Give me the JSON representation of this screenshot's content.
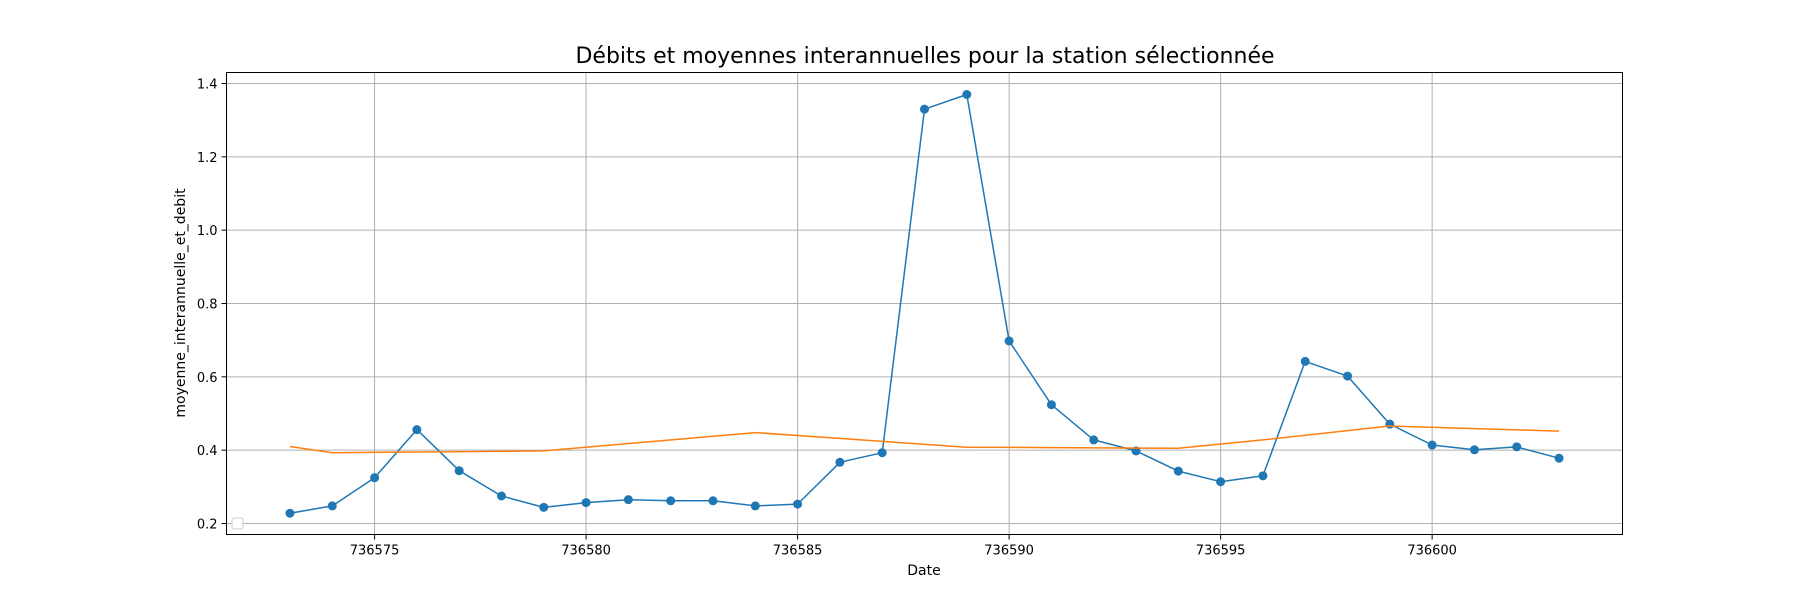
{
  "chart_data": {
    "type": "line",
    "title": "Débits et moyennes interannuelles pour la station sélectionnée",
    "xlabel": "Date",
    "ylabel": "moyenne_interannuelle_et_debit",
    "xlim": [
      736571.5,
      736604.5
    ],
    "ylim": [
      0.17,
      1.43
    ],
    "xticks": [
      736575,
      736580,
      736585,
      736590,
      736595,
      736600
    ],
    "yticks": [
      0.2,
      0.4,
      0.6,
      0.8,
      1.0,
      1.2,
      1.4
    ],
    "grid": true,
    "legend": "lower-left (empty)",
    "series": [
      {
        "color": "#1f77b4",
        "marker": "circle",
        "x": [
          736573,
          736574,
          736575,
          736576,
          736577,
          736578,
          736579,
          736580,
          736581,
          736582,
          736583,
          736584,
          736585,
          736586,
          736587,
          736588,
          736589,
          736590,
          736591,
          736592,
          736593,
          736594,
          736595,
          736596,
          736597,
          736598,
          736599,
          736600,
          736601,
          736602,
          736603
        ],
        "values": [
          0.228,
          0.248,
          0.325,
          0.456,
          0.344,
          0.275,
          0.244,
          0.257,
          0.265,
          0.262,
          0.262,
          0.248,
          0.253,
          0.367,
          0.393,
          1.33,
          1.37,
          0.698,
          0.524,
          0.428,
          0.398,
          0.343,
          0.314,
          0.33,
          0.642,
          0.602,
          0.471,
          0.414,
          0.401,
          0.409,
          0.378
        ]
      },
      {
        "color": "#ff7f0e",
        "marker": "none",
        "x": [
          736573,
          736574,
          736576,
          736579,
          736584,
          736589,
          736591,
          736594,
          736596,
          736599,
          736603
        ],
        "values": [
          0.41,
          0.393,
          0.395,
          0.398,
          0.448,
          0.408,
          0.407,
          0.405,
          0.428,
          0.466,
          0.452
        ]
      }
    ]
  }
}
